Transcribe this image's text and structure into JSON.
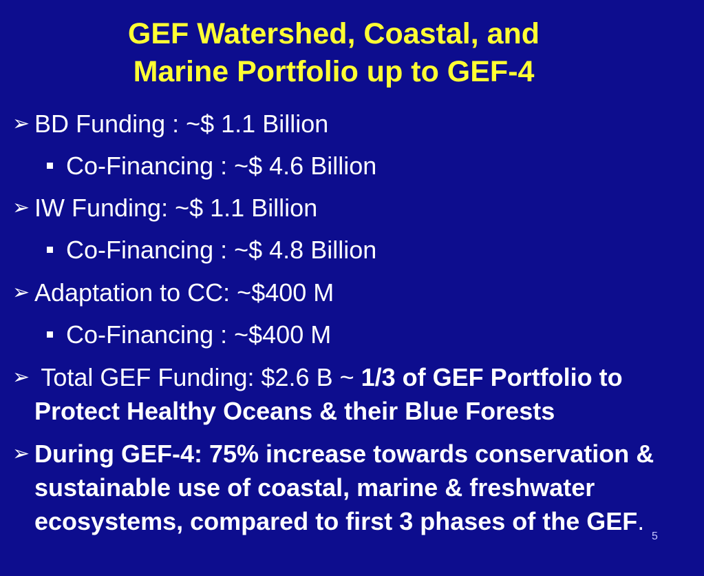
{
  "slide": {
    "title_line1": "GEF Watershed, Coastal, and",
    "title_line2": "Marine Portfolio up to GEF-4",
    "bullet1": "BD Funding : ~$ 1.1 Billion",
    "bullet1_sub": "Co-Financing : ~$ 4.6 Billion",
    "bullet2": "IW Funding: ~$ 1.1 Billion",
    "bullet2_sub": "Co-Financing : ~$ 4.8 Billion",
    "bullet3": "Adaptation to CC: ~$400 M",
    "bullet3_sub": "Co-Financing : ~$400 M",
    "bullet4_normal": " Total GEF Funding: $2.6 B ~ ",
    "bullet4_bold": "1/3 of GEF Portfolio to Protect Healthy Oceans & their Blue Forests",
    "bullet5_bold": "During GEF-4: 75% increase towards conservation & sustainable use of coastal, marine & freshwater ecosystems, compared to first 3 phases of the GEF",
    "bullet5_end": ".",
    "page_number": "5",
    "arrow_glyph": "➢"
  },
  "colors": {
    "background": "#0d0d8e",
    "title": "#ffff33",
    "text": "#ffffff"
  }
}
